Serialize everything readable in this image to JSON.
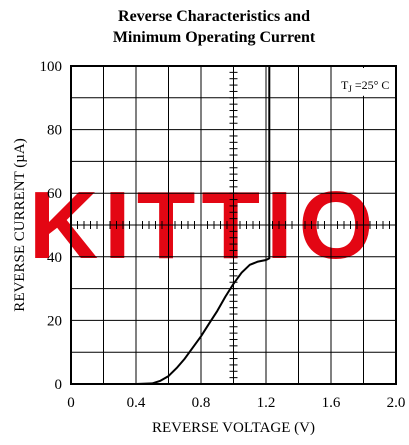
{
  "chart_data": {
    "type": "line",
    "title": [
      "Reverse Characteristics and",
      "Minimum Operating Current"
    ],
    "xlabel": "REVERSE VOLTAGE (V)",
    "ylabel": "REVERSE CURRENT (µA)",
    "xlim": [
      0,
      2.0
    ],
    "ylim": [
      0,
      100
    ],
    "x_ticks": [
      0,
      0.4,
      0.8,
      1.2,
      1.6,
      2.0
    ],
    "x_tick_labels": [
      "0",
      "0.4",
      "0.8",
      "1.2",
      "1.6",
      "2.0"
    ],
    "y_ticks": [
      0,
      20,
      40,
      60,
      80,
      100
    ],
    "y_tick_labels": [
      "0",
      "20",
      "40",
      "60",
      "80",
      "100"
    ],
    "grid": true,
    "grid_x_step": 0.2,
    "grid_y_step": 10,
    "annotation": {
      "prefix": "T",
      "subscript": "J",
      "suffix": " =25° C",
      "placement": "top-right"
    },
    "watermark": "KITTIO",
    "series": [
      {
        "x": [
          0.0,
          0.2,
          0.4,
          0.5,
          0.55,
          0.6,
          0.65,
          0.7,
          0.75,
          0.8,
          0.85,
          0.9,
          0.95,
          1.0,
          1.05,
          1.1,
          1.15,
          1.2,
          1.22,
          1.22
        ],
        "y": [
          0,
          0,
          0,
          0.2,
          1,
          2.5,
          5,
          8,
          11.5,
          15,
          19,
          23,
          27.5,
          31.5,
          35,
          37.5,
          38.5,
          39,
          39.5,
          100
        ]
      }
    ]
  }
}
